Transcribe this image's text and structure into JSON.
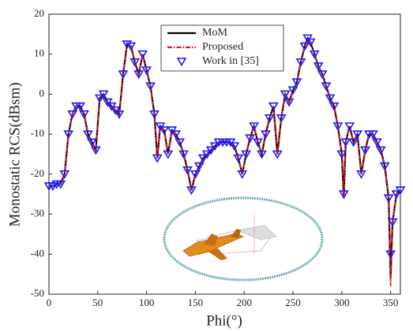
{
  "chart_data": {
    "type": "line",
    "xlabel": "Phi(°)",
    "ylabel": "Monostatic RCS(dBsm)",
    "xlim": [
      0,
      360
    ],
    "xticks": [
      0,
      50,
      100,
      150,
      200,
      250,
      300,
      350
    ],
    "ylim": [
      -50,
      20
    ],
    "yticks": [
      -50,
      -40,
      -30,
      -20,
      -10,
      0,
      10,
      20
    ],
    "legend": "top-center",
    "x": [
      0,
      4,
      8,
      12,
      16,
      20,
      24,
      28,
      32,
      36,
      40,
      44,
      48,
      52,
      56,
      60,
      64,
      68,
      72,
      76,
      80,
      84,
      88,
      92,
      96,
      100,
      104,
      108,
      111,
      114,
      118,
      122,
      126,
      130,
      134,
      138,
      142,
      146,
      150,
      154,
      158,
      162,
      166,
      170,
      174,
      178,
      182,
      186,
      190,
      194,
      198,
      202,
      206,
      210,
      214,
      218,
      222,
      226,
      230,
      234,
      238,
      242,
      246,
      250,
      254,
      258,
      262,
      265,
      268,
      272,
      276,
      280,
      284,
      288,
      292,
      296,
      300,
      302,
      304,
      308,
      312,
      316,
      320,
      324,
      328,
      332,
      336,
      340,
      344,
      348,
      350,
      352,
      356,
      360
    ],
    "series": [
      {
        "name": "MoM",
        "color": "#000000",
        "style": "solid",
        "values": [
          -23,
          -23,
          -22.5,
          -22.5,
          -20,
          -10,
          -5,
          -3,
          -3,
          -5,
          -10,
          -12,
          -14,
          -1,
          0,
          -2,
          -3,
          -4,
          -5,
          5,
          12.5,
          12,
          8,
          5,
          10,
          6,
          2,
          -5,
          -16,
          -8,
          -9,
          -15,
          -9,
          -10,
          -12,
          -15,
          -19,
          -24,
          -20,
          -18,
          -16,
          -15,
          -14,
          -13,
          -12,
          -12,
          -12,
          -12,
          -13,
          -16,
          -20,
          -15,
          -11,
          -8,
          -12,
          -15,
          -10,
          -6,
          -3,
          -15,
          -6,
          0,
          -2,
          1,
          3,
          8,
          12,
          14,
          13,
          10,
          7,
          5,
          2,
          -1,
          -3,
          -8,
          -15,
          -26,
          -12,
          -8,
          -12,
          -10,
          -20,
          -14,
          -10,
          -10,
          -12,
          -14,
          -18,
          -26,
          -46,
          -32,
          -25,
          -24
        ]
      },
      {
        "name": "Proposed",
        "color": "#e8101a",
        "style": "dashdot",
        "values": [
          -23,
          -23,
          -22.5,
          -22.5,
          -20,
          -10,
          -5,
          -3,
          -3,
          -5,
          -10,
          -12,
          -14,
          -1,
          0,
          -2,
          -3,
          -4,
          -5,
          5,
          12.5,
          12,
          8,
          5,
          10,
          6,
          2,
          -5,
          -16,
          -8,
          -9,
          -15,
          -9,
          -10,
          -12,
          -15,
          -19,
          -24,
          -20,
          -18,
          -16,
          -15,
          -14,
          -13,
          -12,
          -12,
          -12,
          -12,
          -13,
          -16,
          -20,
          -15,
          -11,
          -8,
          -12,
          -15,
          -10,
          -6,
          -3,
          -15,
          -6,
          0,
          -2,
          1,
          3,
          8,
          12,
          14,
          13,
          10,
          7,
          5,
          2,
          -1,
          -3,
          -8,
          -15,
          -26,
          -12,
          -8,
          -12,
          -10,
          -20,
          -14,
          -10,
          -10,
          -12,
          -14,
          -18,
          -26,
          -48,
          -32,
          -25,
          -24
        ]
      },
      {
        "name": "Work in [35]",
        "color": "#1a1aff",
        "style": "marker",
        "values": [
          -23,
          -23,
          -22.5,
          -22.5,
          -20,
          -10,
          -5,
          -3,
          -3,
          -5,
          -10,
          -12,
          -14,
          -1,
          0,
          -2,
          -3,
          -4,
          -5,
          5,
          12.5,
          12,
          8,
          5,
          10,
          6,
          2,
          -5,
          -16,
          -8,
          -9,
          -15,
          -9,
          -10,
          -12,
          -15,
          -19,
          -24,
          -20,
          -18,
          -16,
          -15,
          -14,
          -13,
          -12,
          -12,
          -12,
          -12,
          -13,
          -16,
          -20,
          -15,
          -11,
          -8,
          -12,
          -15,
          -10,
          -6,
          -3,
          -15,
          -6,
          0,
          -2,
          1,
          3,
          8,
          12,
          14,
          13,
          10,
          7,
          5,
          2,
          -1,
          -3,
          -8,
          -15,
          -25,
          -12,
          -8,
          -12,
          -10,
          -20,
          -14,
          -10,
          -10,
          -12,
          -14,
          -18,
          -26,
          -40,
          -32,
          -25,
          -24
        ]
      }
    ]
  }
}
